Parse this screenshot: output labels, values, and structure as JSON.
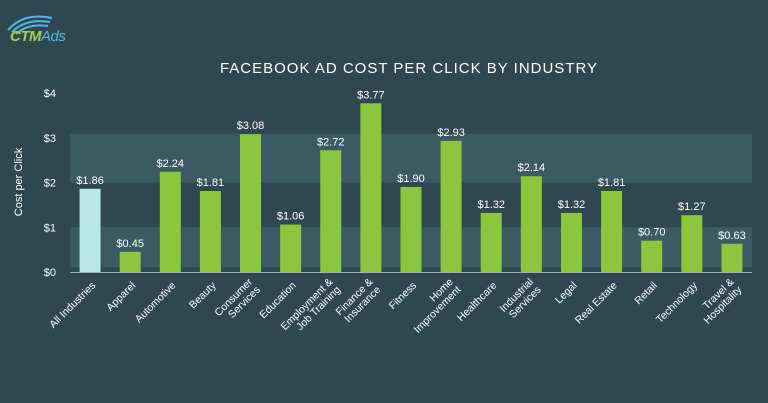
{
  "logo": {
    "text_main": "CTM",
    "text_sub": "Ads"
  },
  "colors": {
    "background": "#2f4750",
    "band": "#3b5a64",
    "bar": "#8cc63f",
    "highlight_bar": "#b9e6ea",
    "axis": "#9fb0b6",
    "text": "#ffffff"
  },
  "chart_data": {
    "type": "bar",
    "title": "FACEBOOK AD COST PER CLICK BY INDUSTRY",
    "ylabel": "Cost per Click",
    "xlabel": "",
    "ylim": [
      0,
      4
    ],
    "yticks": [
      {
        "value": 0,
        "label": "$0"
      },
      {
        "value": 1,
        "label": "$1"
      },
      {
        "value": 2,
        "label": "$2"
      },
      {
        "value": 3,
        "label": "$3"
      },
      {
        "value": 4,
        "label": "$4"
      }
    ],
    "grid": "bands",
    "highlight": "All Industries",
    "categories": [
      "All Industries",
      "Apparel",
      "Automotive",
      "Beauty",
      "Consumer Services",
      "Education",
      "Employment & Job Training",
      "Finance & Insurance",
      "Fitness",
      "Home Improvement",
      "Healthcare",
      "Industrial Services",
      "Legal",
      "Real Estate",
      "Retail",
      "Technology",
      "Travel & Hospitality"
    ],
    "category_lines": [
      [
        "All Industries"
      ],
      [
        "Apparel"
      ],
      [
        "Automotive"
      ],
      [
        "Beauty"
      ],
      [
        "Consumer",
        "Services"
      ],
      [
        "Education"
      ],
      [
        "Employment &",
        "Job Training"
      ],
      [
        "Finance &",
        "Insurance"
      ],
      [
        "Fitness"
      ],
      [
        "Home",
        "Improvement"
      ],
      [
        "Healthcare"
      ],
      [
        "Industrial",
        "Services"
      ],
      [
        "Legal"
      ],
      [
        "Real Estate"
      ],
      [
        "Retail"
      ],
      [
        "Technology"
      ],
      [
        "Travel &",
        "Hospitality"
      ]
    ],
    "values": [
      1.86,
      0.45,
      2.24,
      1.81,
      3.08,
      1.06,
      2.72,
      3.77,
      1.9,
      2.93,
      1.32,
      2.14,
      1.32,
      1.81,
      0.7,
      1.27,
      0.63
    ],
    "data_labels": [
      "$1.86",
      "$0.45",
      "$2.24",
      "$1.81",
      "$3.08",
      "$1.06",
      "$2.72",
      "$3.77",
      "$1.90",
      "$2.93",
      "$1.32",
      "$2.14",
      "$1.32",
      "$1.81",
      "$0.70",
      "$1.27",
      "$0.63"
    ]
  }
}
